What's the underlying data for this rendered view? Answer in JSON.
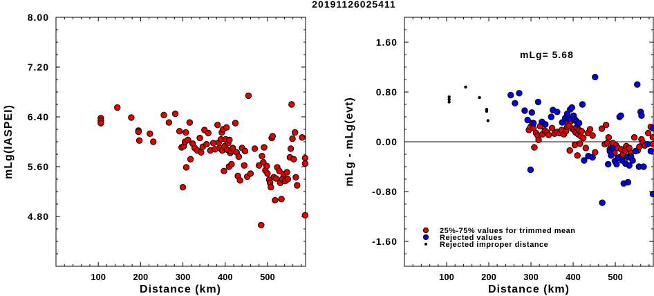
{
  "title": "20191126025411",
  "chart_data": [
    {
      "type": "scatter",
      "ylabel": "mLg(IASPEI)",
      "xlabel": "Distance (km)",
      "xlim": [
        0,
        590
      ],
      "ylim": [
        4.0,
        8.0
      ],
      "xticks": [
        "100",
        "200",
        "300",
        "400",
        "500"
      ],
      "yticks": [
        "4.80",
        "5.60",
        "6.40",
        "7.20",
        "8.00"
      ],
      "series": [
        {
          "color": "#e00000",
          "points": [
            [
              106,
              6.38
            ],
            [
              106,
              6.34
            ],
            [
              106,
              6.3
            ],
            [
              145,
              6.55
            ],
            [
              178,
              6.39
            ],
            [
              195,
              6.18
            ],
            [
              195,
              6.16
            ],
            [
              197,
              6.02
            ],
            [
              222,
              6.13
            ],
            [
              230,
              6.0
            ],
            [
              255,
              6.43
            ],
            [
              267,
              6.31
            ],
            [
              282,
              6.45
            ],
            [
              292,
              6.17
            ],
            [
              297,
              5.91
            ],
            [
              300,
              5.27
            ],
            [
              302,
              5.93
            ],
            [
              305,
              6.0
            ],
            [
              307,
              6.15
            ],
            [
              308,
              5.59
            ],
            [
              312,
              6.03
            ],
            [
              316,
              6.31
            ],
            [
              318,
              5.72
            ],
            [
              323,
              5.97
            ],
            [
              328,
              5.9
            ],
            [
              334,
              5.86
            ],
            [
              340,
              6.06
            ],
            [
              343,
              5.83
            ],
            [
              347,
              5.92
            ],
            [
              351,
              6.19
            ],
            [
              356,
              5.96
            ],
            [
              360,
              6.14
            ],
            [
              365,
              5.86
            ],
            [
              372,
              5.98
            ],
            [
              376,
              5.88
            ],
            [
              382,
              6.27
            ],
            [
              385,
              5.99
            ],
            [
              387,
              5.9
            ],
            [
              390,
              6.04
            ],
            [
              392,
              6.15
            ],
            [
              393,
              5.86
            ],
            [
              395,
              6.2
            ],
            [
              397,
              5.53
            ],
            [
              399,
              5.93
            ],
            [
              401,
              6.04
            ],
            [
              403,
              6.23
            ],
            [
              405,
              5.87
            ],
            [
              407,
              5.98
            ],
            [
              409,
              5.6
            ],
            [
              410,
              6.03
            ],
            [
              412,
              5.82
            ],
            [
              413,
              5.85
            ],
            [
              415,
              5.64
            ],
            [
              418,
              5.9
            ],
            [
              424,
              6.3
            ],
            [
              427,
              5.83
            ],
            [
              430,
              5.45
            ],
            [
              432,
              5.76
            ],
            [
              435,
              5.38
            ],
            [
              440,
              5.9
            ],
            [
              445,
              5.62
            ],
            [
              447,
              5.85
            ],
            [
              452,
              5.44
            ],
            [
              455,
              6.74
            ],
            [
              460,
              5.49
            ],
            [
              470,
              5.89
            ],
            [
              480,
              5.62
            ],
            [
              485,
              4.66
            ],
            [
              487,
              5.77
            ],
            [
              490,
              5.67
            ],
            [
              492,
              5.91
            ],
            [
              495,
              5.54
            ],
            [
              498,
              5.61
            ],
            [
              500,
              5.49
            ],
            [
              504,
              5.39
            ],
            [
              506,
              5.34
            ],
            [
              508,
              5.27
            ],
            [
              510,
              6.06
            ],
            [
              512,
              6.09
            ],
            [
              515,
              5.43
            ],
            [
              518,
              5.06
            ],
            [
              520,
              5.41
            ],
            [
              523,
              5.59
            ],
            [
              528,
              5.53
            ],
            [
              530,
              5.34
            ],
            [
              533,
              5.08
            ],
            [
              535,
              5.4
            ],
            [
              538,
              5.48
            ],
            [
              542,
              5.37
            ],
            [
              546,
              5.51
            ],
            [
              548,
              5.4
            ],
            [
              553,
              5.75
            ],
            [
              555,
              5.89
            ],
            [
              557,
              6.6
            ],
            [
              559,
              6.05
            ],
            [
              562,
              5.72
            ],
            [
              565,
              6.15
            ],
            [
              567,
              5.43
            ],
            [
              570,
              5.3
            ],
            [
              582,
              6.07
            ],
            [
              589,
              5.74
            ],
            [
              589,
              5.65
            ],
            [
              589,
              4.82
            ]
          ]
        }
      ]
    },
    {
      "type": "scatter",
      "ylabel": "mLg - mLg(evt)",
      "xlabel": "Distance (km)",
      "xlim": [
        0,
        590
      ],
      "ylim": [
        -2.0,
        2.0
      ],
      "xticks": [
        "100",
        "200",
        "300",
        "400",
        "500"
      ],
      "yticks": [
        "-1.60",
        "-0.80",
        "0.00",
        "0.80",
        "1.60"
      ],
      "annotation": "mLg= 5.68",
      "reference_line": 0.0,
      "legend": {
        "placement": "bottom-left",
        "entries": [
          {
            "label": "25%-75% values for trimmed mean",
            "color": "#e00000",
            "marker": "large-circle"
          },
          {
            "label": "Rejected values",
            "color": "#0000e0",
            "marker": "large-circle"
          },
          {
            "label": "Rejected improper distance",
            "color": "#000000",
            "marker": "small-dot"
          }
        ]
      },
      "series": [
        {
          "name": "25%-75% values for trimmed mean",
          "color": "#e00000",
          "points": [
            [
              295,
              0.19
            ],
            [
              299,
              0.24
            ],
            [
              303,
              0.3
            ],
            [
              306,
              0.22
            ],
            [
              308,
              -0.09
            ],
            [
              312,
              0.14
            ],
            [
              316,
              0.1
            ],
            [
              318,
              0.03
            ],
            [
              322,
              0.25
            ],
            [
              327,
              0.12
            ],
            [
              333,
              0.18
            ],
            [
              338,
              0.15
            ],
            [
              342,
              0.11
            ],
            [
              350,
              0.22
            ],
            [
              356,
              0.13
            ],
            [
              362,
              0.16
            ],
            [
              368,
              0.14
            ],
            [
              373,
              0.19
            ],
            [
              378,
              0.12
            ],
            [
              383,
              0.17
            ],
            [
              386,
              0.24
            ],
            [
              388,
              0.3
            ],
            [
              390,
              0.26
            ],
            [
              392,
              -0.14
            ],
            [
              395,
              0.33
            ],
            [
              398,
              0.21
            ],
            [
              400,
              0.36
            ],
            [
              402,
              0.19
            ],
            [
              404,
              -0.05
            ],
            [
              406,
              0.15
            ],
            [
              408,
              0.23
            ],
            [
              410,
              -0.22
            ],
            [
              412,
              0.12
            ],
            [
              414,
              0.19
            ],
            [
              416,
              -0.03
            ],
            [
              418,
              0.09
            ],
            [
              420,
              0.17
            ],
            [
              424,
              0.06
            ],
            [
              430,
              -0.1
            ],
            [
              435,
              0.14
            ],
            [
              440,
              0.2
            ],
            [
              446,
              0.1
            ],
            [
              452,
              -0.17
            ],
            [
              468,
              0.21
            ],
            [
              475,
              -0.04
            ],
            [
              478,
              0.27
            ],
            [
              481,
              -0.02
            ],
            [
              484,
              0.07
            ],
            [
              487,
              -0.12
            ],
            [
              490,
              -0.06
            ],
            [
              494,
              -0.02
            ],
            [
              498,
              -0.18
            ],
            [
              502,
              -0.06
            ],
            [
              506,
              -0.1
            ],
            [
              510,
              -0.25
            ],
            [
              514,
              -0.12
            ],
            [
              518,
              -0.2
            ],
            [
              523,
              -0.14
            ],
            [
              526,
              -0.07
            ],
            [
              530,
              -0.25
            ],
            [
              533,
              -0.1
            ],
            [
              537,
              -0.18
            ],
            [
              545,
              0.07
            ],
            [
              553,
              -0.14
            ],
            [
              557,
              -0.08
            ],
            [
              562,
              0.04
            ],
            [
              565,
              -0.01
            ],
            [
              570,
              -0.06
            ],
            [
              578,
              0.14
            ],
            [
              584,
              0.24
            ],
            [
              589,
              0.07
            ],
            [
              589,
              -0.04
            ]
          ]
        },
        {
          "name": "Rejected values",
          "color": "#0000e0",
          "points": [
            [
              252,
              0.75
            ],
            [
              262,
              0.62
            ],
            [
              272,
              0.78
            ],
            [
              285,
              0.5
            ],
            [
              292,
              0.35
            ],
            [
              299,
              -0.45
            ],
            [
              302,
              0.47
            ],
            [
              306,
              0.3
            ],
            [
              317,
              0.64
            ],
            [
              326,
              0.32
            ],
            [
              334,
              0.28
            ],
            [
              348,
              0.4
            ],
            [
              352,
              0.51
            ],
            [
              362,
              0.48
            ],
            [
              374,
              0.31
            ],
            [
              381,
              0.38
            ],
            [
              386,
              0.45
            ],
            [
              390,
              0.37
            ],
            [
              393,
              0.52
            ],
            [
              397,
              0.55
            ],
            [
              401,
              0.42
            ],
            [
              404,
              0.36
            ],
            [
              408,
              0.33
            ],
            [
              411,
              0.28
            ],
            [
              414,
              0.3
            ],
            [
              422,
              0.6
            ],
            [
              426,
              -0.3
            ],
            [
              436,
              -0.23
            ],
            [
              446,
              -0.25
            ],
            [
              452,
              1.04
            ],
            [
              469,
              -0.98
            ],
            [
              483,
              -0.36
            ],
            [
              487,
              -0.15
            ],
            [
              490,
              -0.22
            ],
            [
              493,
              -0.1
            ],
            [
              499,
              -0.31
            ],
            [
              503,
              -0.36
            ],
            [
              506,
              -0.26
            ],
            [
              510,
              0.4
            ],
            [
              513,
              0.42
            ],
            [
              516,
              -0.3
            ],
            [
              520,
              -0.67
            ],
            [
              524,
              -0.35
            ],
            [
              528,
              -0.24
            ],
            [
              530,
              -0.65
            ],
            [
              533,
              -0.38
            ],
            [
              537,
              -0.24
            ],
            [
              541,
              -0.3
            ],
            [
              548,
              -0.15
            ],
            [
              552,
              0.92
            ],
            [
              556,
              -0.4
            ],
            [
              560,
              0.48
            ],
            [
              562,
              0.42
            ],
            [
              567,
              -0.4
            ],
            [
              576,
              -0.04
            ],
            [
              584,
              -0.15
            ],
            [
              589,
              0.22
            ],
            [
              589,
              -0.84
            ]
          ]
        },
        {
          "name": "Rejected improper distance",
          "color": "#000000",
          "points": [
            [
              106,
              0.72
            ],
            [
              106,
              0.68
            ],
            [
              106,
              0.64
            ],
            [
              145,
              0.88
            ],
            [
              178,
              0.71
            ],
            [
              195,
              0.52
            ],
            [
              195,
              0.49
            ],
            [
              198,
              0.34
            ]
          ]
        }
      ]
    }
  ]
}
